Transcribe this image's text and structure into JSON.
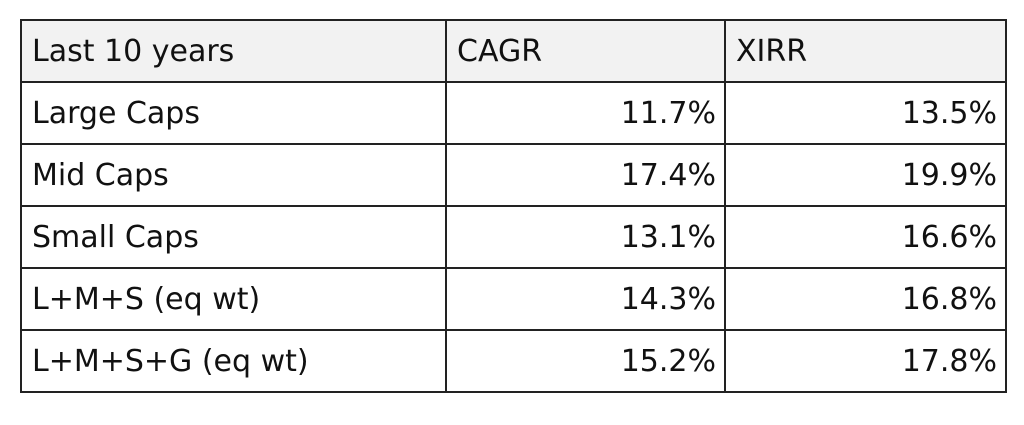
{
  "table": {
    "headers": [
      "Last 10 years",
      "CAGR",
      "XIRR"
    ],
    "rows": [
      {
        "label": "Large Caps",
        "cagr": "11.7%",
        "xirr": "13.5%"
      },
      {
        "label": "Mid Caps",
        "cagr": "17.4%",
        "xirr": "19.9%"
      },
      {
        "label": "Small Caps",
        "cagr": "13.1%",
        "xirr": "16.6%"
      },
      {
        "label": "L+M+S (eq wt)",
        "cagr": "14.3%",
        "xirr": "16.8%"
      },
      {
        "label": "L+M+S+G (eq wt)",
        "cagr": "15.2%",
        "xirr": "17.8%"
      }
    ]
  },
  "colors": {
    "header_background": "#f2f2f2",
    "border": "#222222",
    "text": "#111111"
  }
}
